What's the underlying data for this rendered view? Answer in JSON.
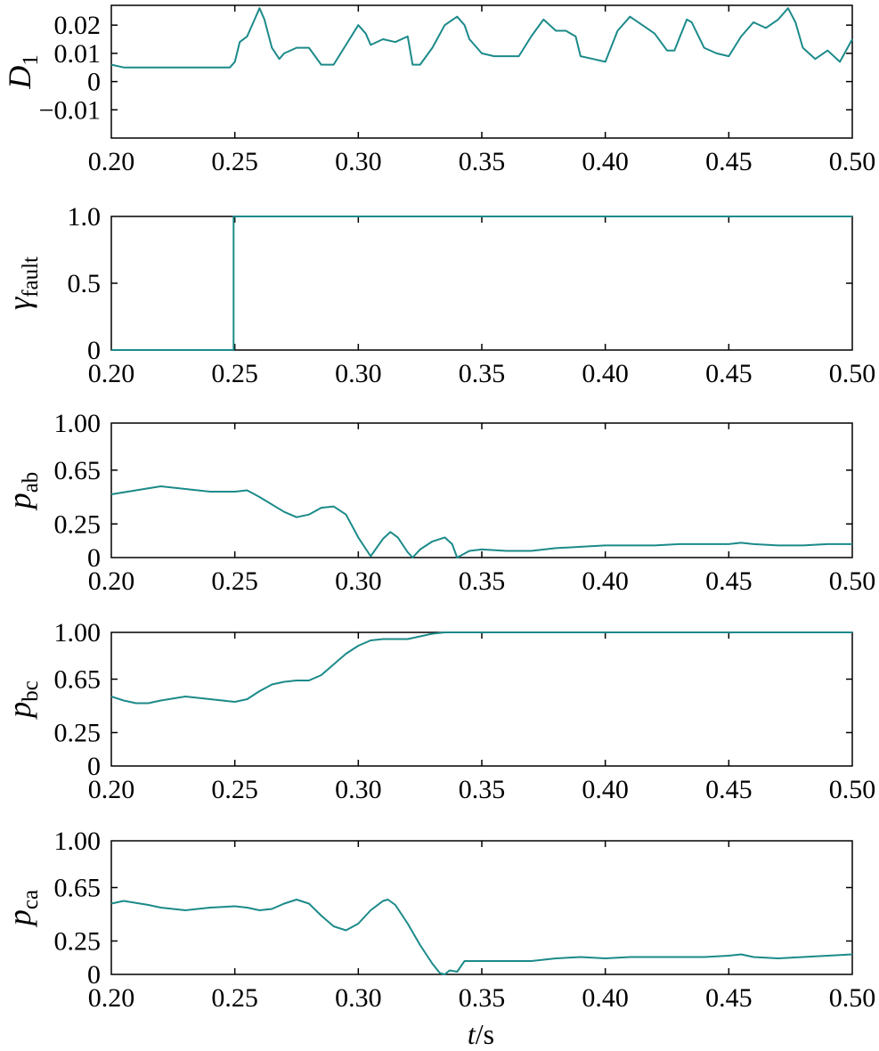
{
  "colors": {
    "series": "#1c8a8a",
    "axis": "#000000",
    "background": "#ffffff"
  },
  "x_axis": {
    "label_var": "t",
    "label_unit": "/s",
    "ticks": [
      "0.20",
      "0.25",
      "0.30",
      "0.35",
      "0.40",
      "0.45",
      "0.50"
    ],
    "range": [
      0.2,
      0.5
    ]
  },
  "chart_data": [
    {
      "type": "line",
      "id": "D1",
      "ylabel_main": "D",
      "ylabel_sub": "1",
      "ylim": [
        -0.02,
        0.027
      ],
      "yticks": [
        0.02,
        0.01,
        0,
        -0.01
      ],
      "ytick_labels": [
        "0.02",
        "0.01",
        "0",
        "−0.01"
      ],
      "x": [
        0.2,
        0.205,
        0.21,
        0.22,
        0.23,
        0.24,
        0.245,
        0.248,
        0.25,
        0.252,
        0.255,
        0.258,
        0.26,
        0.262,
        0.265,
        0.268,
        0.27,
        0.275,
        0.28,
        0.285,
        0.288,
        0.29,
        0.295,
        0.3,
        0.303,
        0.305,
        0.31,
        0.315,
        0.32,
        0.322,
        0.325,
        0.33,
        0.335,
        0.34,
        0.343,
        0.345,
        0.35,
        0.355,
        0.36,
        0.365,
        0.37,
        0.375,
        0.38,
        0.384,
        0.388,
        0.39,
        0.395,
        0.4,
        0.405,
        0.41,
        0.415,
        0.42,
        0.425,
        0.428,
        0.433,
        0.435,
        0.44,
        0.445,
        0.45,
        0.455,
        0.46,
        0.465,
        0.47,
        0.474,
        0.477,
        0.48,
        0.485,
        0.49,
        0.495,
        0.5
      ],
      "values": [
        0.006,
        0.005,
        0.005,
        0.005,
        0.005,
        0.005,
        0.005,
        0.005,
        0.007,
        0.014,
        0.016,
        0.022,
        0.026,
        0.022,
        0.012,
        0.008,
        0.01,
        0.012,
        0.012,
        0.006,
        0.006,
        0.006,
        0.013,
        0.02,
        0.017,
        0.013,
        0.015,
        0.014,
        0.016,
        0.006,
        0.006,
        0.012,
        0.02,
        0.023,
        0.02,
        0.015,
        0.01,
        0.009,
        0.009,
        0.009,
        0.016,
        0.022,
        0.018,
        0.018,
        0.016,
        0.009,
        0.008,
        0.007,
        0.018,
        0.023,
        0.02,
        0.017,
        0.011,
        0.011,
        0.022,
        0.021,
        0.012,
        0.01,
        0.009,
        0.016,
        0.021,
        0.019,
        0.022,
        0.026,
        0.021,
        0.012,
        0.008,
        0.011,
        0.007,
        0.015
      ]
    },
    {
      "type": "line",
      "id": "gamma_fault",
      "ylabel_main": "γ",
      "ylabel_sub": "fault",
      "ylim": [
        0,
        1.0
      ],
      "yticks": [
        1.0,
        0.5,
        0
      ],
      "ytick_labels": [
        "1.0",
        "0.5",
        "0"
      ],
      "x": [
        0.2,
        0.2495,
        0.2495,
        0.5
      ],
      "values": [
        0,
        0,
        1,
        1
      ]
    },
    {
      "type": "line",
      "id": "p_ab",
      "ylabel_main": "p",
      "ylabel_sub": "ab",
      "ylim": [
        0,
        1.0
      ],
      "yticks": [
        1.0,
        0.65,
        0.25,
        0
      ],
      "ytick_labels": [
        "1.00",
        "0.65",
        "0.25",
        "0"
      ],
      "x": [
        0.2,
        0.21,
        0.22,
        0.23,
        0.24,
        0.25,
        0.255,
        0.26,
        0.27,
        0.275,
        0.28,
        0.285,
        0.29,
        0.295,
        0.3,
        0.305,
        0.31,
        0.313,
        0.316,
        0.32,
        0.322,
        0.325,
        0.33,
        0.335,
        0.338,
        0.34,
        0.345,
        0.35,
        0.36,
        0.37,
        0.38,
        0.39,
        0.4,
        0.41,
        0.42,
        0.43,
        0.44,
        0.45,
        0.455,
        0.46,
        0.47,
        0.48,
        0.49,
        0.5
      ],
      "values": [
        0.47,
        0.5,
        0.53,
        0.51,
        0.49,
        0.49,
        0.5,
        0.45,
        0.34,
        0.3,
        0.32,
        0.37,
        0.38,
        0.32,
        0.15,
        0.01,
        0.14,
        0.19,
        0.15,
        0.04,
        0.0,
        0.06,
        0.12,
        0.15,
        0.1,
        0.0,
        0.05,
        0.06,
        0.05,
        0.05,
        0.07,
        0.08,
        0.09,
        0.09,
        0.09,
        0.1,
        0.1,
        0.1,
        0.11,
        0.1,
        0.09,
        0.09,
        0.1,
        0.1
      ]
    },
    {
      "type": "line",
      "id": "p_bc",
      "ylabel_main": "p",
      "ylabel_sub": "bc",
      "ylim": [
        0,
        1.0
      ],
      "yticks": [
        1.0,
        0.65,
        0.25,
        0
      ],
      "ytick_labels": [
        "1.00",
        "0.65",
        "0.25",
        "0"
      ],
      "x": [
        0.2,
        0.205,
        0.21,
        0.215,
        0.22,
        0.23,
        0.24,
        0.245,
        0.25,
        0.255,
        0.26,
        0.265,
        0.27,
        0.275,
        0.28,
        0.285,
        0.29,
        0.295,
        0.3,
        0.305,
        0.31,
        0.315,
        0.32,
        0.325,
        0.33,
        0.335,
        0.337,
        0.34,
        0.35,
        0.4,
        0.45,
        0.5
      ],
      "values": [
        0.52,
        0.49,
        0.47,
        0.47,
        0.49,
        0.52,
        0.5,
        0.49,
        0.48,
        0.5,
        0.56,
        0.61,
        0.63,
        0.64,
        0.64,
        0.68,
        0.76,
        0.84,
        0.9,
        0.94,
        0.95,
        0.95,
        0.95,
        0.97,
        0.99,
        1.0,
        1.0,
        1.0,
        1.0,
        1.0,
        1.0,
        1.0
      ]
    },
    {
      "type": "line",
      "id": "p_ca",
      "ylabel_main": "p",
      "ylabel_sub": "ca",
      "ylim": [
        0,
        1.0
      ],
      "yticks": [
        1.0,
        0.65,
        0.25,
        0
      ],
      "ytick_labels": [
        "1.00",
        "0.65",
        "0.25",
        "0"
      ],
      "x": [
        0.2,
        0.205,
        0.215,
        0.22,
        0.23,
        0.24,
        0.25,
        0.255,
        0.26,
        0.265,
        0.27,
        0.275,
        0.28,
        0.285,
        0.29,
        0.295,
        0.3,
        0.305,
        0.31,
        0.312,
        0.315,
        0.32,
        0.325,
        0.33,
        0.333,
        0.335,
        0.337,
        0.34,
        0.343,
        0.35,
        0.36,
        0.37,
        0.38,
        0.39,
        0.4,
        0.41,
        0.42,
        0.43,
        0.44,
        0.45,
        0.455,
        0.46,
        0.47,
        0.48,
        0.49,
        0.5
      ],
      "values": [
        0.53,
        0.55,
        0.52,
        0.5,
        0.48,
        0.5,
        0.51,
        0.5,
        0.48,
        0.49,
        0.53,
        0.56,
        0.53,
        0.44,
        0.36,
        0.33,
        0.38,
        0.48,
        0.55,
        0.56,
        0.52,
        0.38,
        0.22,
        0.08,
        0.01,
        0.0,
        0.03,
        0.02,
        0.1,
        0.1,
        0.1,
        0.1,
        0.12,
        0.13,
        0.12,
        0.13,
        0.13,
        0.13,
        0.13,
        0.14,
        0.15,
        0.13,
        0.12,
        0.13,
        0.14,
        0.15
      ]
    }
  ]
}
